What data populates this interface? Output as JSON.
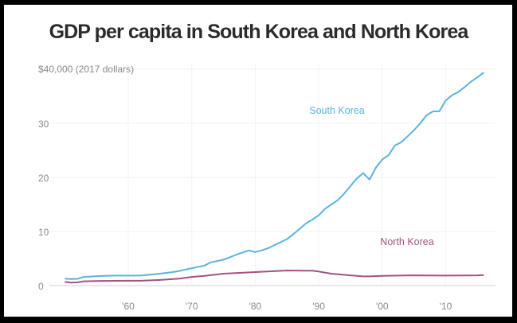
{
  "chart_data": {
    "type": "line",
    "title": "GDP per capita in South Korea and North Korea",
    "ylabel": "$40,000 (2017 dollars)",
    "xlim": [
      1950,
      2016
    ],
    "ylim": [
      0,
      40
    ],
    "yticks": [
      0,
      10,
      20,
      30
    ],
    "ytick_labels": [
      "0",
      "10",
      "20",
      "30"
    ],
    "xticks": [
      1960,
      1970,
      1980,
      1990,
      2000,
      2010
    ],
    "xtick_labels": [
      "'60",
      "'70",
      "'80",
      "'90",
      "'00",
      "'10"
    ],
    "grid": true,
    "legend": "inline labels",
    "series": [
      {
        "name": "South Korea",
        "color": "#5ab3dc",
        "x": [
          1950,
          1951,
          1952,
          1953,
          1955,
          1958,
          1960,
          1962,
          1965,
          1967,
          1968,
          1970,
          1972,
          1973,
          1975,
          1977,
          1979,
          1980,
          1981,
          1982,
          1985,
          1986,
          1987,
          1988,
          1989,
          1990,
          1991,
          1992,
          1993,
          1994,
          1995,
          1996,
          1997,
          1998,
          1999,
          2000,
          2001,
          2002,
          2003,
          2004,
          2005,
          2006,
          2007,
          2008,
          2009,
          2010,
          2011,
          2012,
          2013,
          2014,
          2015,
          2016
        ],
        "y": [
          1.3,
          1.2,
          1.25,
          1.6,
          1.75,
          1.85,
          1.85,
          1.85,
          2.2,
          2.5,
          2.7,
          3.2,
          3.7,
          4.3,
          4.8,
          5.7,
          6.5,
          6.2,
          6.5,
          6.9,
          8.6,
          9.5,
          10.5,
          11.5,
          12.2,
          13.0,
          14.2,
          15.0,
          15.8,
          17.0,
          18.4,
          19.8,
          20.8,
          19.6,
          21.8,
          23.3,
          24.1,
          25.9,
          26.5,
          27.6,
          28.7,
          30.0,
          31.5,
          32.2,
          32.2,
          34.2,
          35.2,
          35.8,
          36.7,
          37.7,
          38.5,
          39.4
        ]
      },
      {
        "name": "North Korea",
        "color": "#a3527f",
        "x": [
          1950,
          1951,
          1952,
          1953,
          1955,
          1960,
          1962,
          1965,
          1968,
          1970,
          1972,
          1975,
          1980,
          1985,
          1989,
          1990,
          1992,
          1995,
          1997,
          1998,
          2000,
          2005,
          2010,
          2015,
          2016
        ],
        "y": [
          0.7,
          0.55,
          0.6,
          0.8,
          0.85,
          0.9,
          0.9,
          1.05,
          1.3,
          1.6,
          1.8,
          2.2,
          2.5,
          2.8,
          2.75,
          2.6,
          2.2,
          1.9,
          1.7,
          1.7,
          1.8,
          1.9,
          1.85,
          1.9,
          1.95
        ]
      }
    ]
  }
}
